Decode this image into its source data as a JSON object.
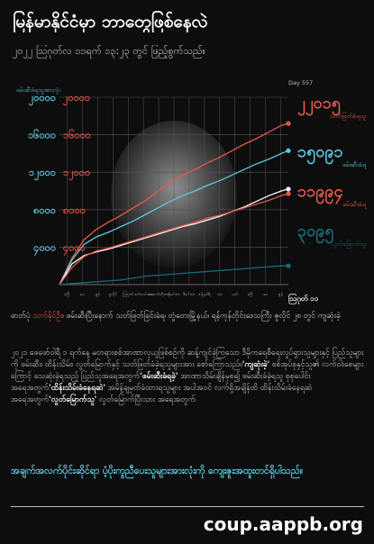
{
  "header": {
    "title": "မြန်မာနိုင်ငံမှာ ဘာတွေဖြစ်နေလဲ",
    "subtitle": "၂၀၂၂ ဩဂုတ်လ ၁၁ရက် ၁၃:၂၃ တွင် ဖြည့်စွက်သည်။"
  },
  "chart_data": {
    "type": "line",
    "ylabel": "ဖမ်းဆီးခံရသူအားလုံး",
    "x_end_label": "Day 557",
    "x_axis_end": "ဩဂုတ် ၁၁",
    "x_ticks": [
      "ဧပြီ",
      "မေ",
      "ဇွန်",
      "ဇူလိုင်",
      "ဩဂုတ်",
      "စက်တင်ဘာ",
      "အောက်တိုဘာ",
      "နိုဝင်ဘာ",
      "ဒီဇင်ဘာ",
      "ဇန်နဝါရီ",
      "ဖေ",
      "မတ်",
      "ဧပြီ",
      "မေ",
      "ဇွန်"
    ],
    "ytick_labels": [
      "၂၀၀၀၀",
      "၁၆၀၀၀",
      "၁၂၀၀၀",
      "၈၀၀၀",
      "၄၀၀၀"
    ],
    "yticks": [
      20000,
      16000,
      12000,
      8000,
      4000
    ],
    "ylim": [
      0,
      20000
    ],
    "xlim": [
      0,
      557
    ],
    "grid": true,
    "series": [
      {
        "name": "ဖမ်းဆီးခံရသူအားလုံး",
        "color": "#e8584c",
        "x": [
          0,
          30,
          60,
          90,
          120,
          150,
          180,
          210,
          240,
          270,
          300,
          330,
          360,
          390,
          420,
          450,
          480,
          510,
          540,
          557
        ],
        "y": [
          0,
          2800,
          4800,
          5900,
          6700,
          7400,
          8200,
          9000,
          10000,
          10900,
          11700,
          12300,
          13000,
          13600,
          14300,
          15000,
          15600,
          16300,
          17000,
          17200
        ]
      },
      {
        "name": "ဖမ်းဆီးခံရ",
        "color": "#5ec8e0",
        "x": [
          0,
          30,
          60,
          90,
          120,
          150,
          180,
          210,
          240,
          270,
          300,
          330,
          360,
          390,
          420,
          450,
          480,
          510,
          540,
          557
        ],
        "y": [
          0,
          2600,
          4300,
          5100,
          5600,
          6200,
          6800,
          7500,
          8200,
          8900,
          9500,
          10000,
          10600,
          11100,
          11700,
          12300,
          12900,
          13400,
          14000,
          14300
        ]
      },
      {
        "name": "သတ်ဖြတ်ခံရသူ",
        "color": "#ffffff",
        "x": [
          0,
          30,
          60,
          90,
          120,
          150,
          180,
          210,
          240,
          270,
          300,
          330,
          360,
          390,
          420,
          450,
          480,
          510,
          540,
          557
        ],
        "y": [
          0,
          2200,
          3100,
          3500,
          3800,
          4200,
          4600,
          5000,
          5400,
          5800,
          6200,
          6500,
          6900,
          7300,
          7800,
          8300,
          8900,
          9500,
          10000,
          10200
        ]
      },
      {
        "name": "ဖမ်းဆီးခံရ",
        "color": "#e8584c",
        "x": [
          0,
          30,
          60,
          90,
          120,
          150,
          180,
          210,
          240,
          270,
          300,
          330,
          360,
          390,
          420,
          450,
          480,
          510,
          540,
          557
        ],
        "y": [
          0,
          1800,
          3000,
          3600,
          3900,
          4300,
          4700,
          5100,
          5500,
          5900,
          6300,
          6700,
          7100,
          7400,
          7800,
          8200,
          8600,
          9000,
          9500,
          9700
        ]
      },
      {
        "name": "လွတ်မြောက်သူ",
        "color": "#1a6b7a",
        "x": [
          0,
          30,
          60,
          90,
          120,
          150,
          180,
          210,
          240,
          270,
          300,
          330,
          360,
          390,
          420,
          450,
          480,
          510,
          540,
          557
        ],
        "y": [
          0,
          100,
          200,
          300,
          400,
          500,
          700,
          900,
          1000,
          1100,
          1200,
          1300,
          1400,
          1500,
          1600,
          1700,
          1800,
          1900,
          2000,
          2000
        ]
      }
    ],
    "end_labels": [
      {
        "value": "၂၂၀၁၅",
        "caption": "သတ်ဖြတ်ခံရသူ",
        "color": "#e8584c"
      },
      {
        "value": "၁၅၀၉၁",
        "caption": "ဖမ်းဆီးခံရ",
        "color": "#5ec8e0"
      },
      {
        "value": "၁၁၉၉၄",
        "caption": "ဖမ်းဆီးခံရ",
        "color": "#e8584c"
      },
      {
        "value": "၃၀၉၅",
        "caption": "လွတ်မြောက်သူ",
        "color": "#1a6b7a"
      }
    ]
  },
  "body": {
    "p1_a": "ဓာတ်ပုံ ",
    "p1_name": "သက်နိုင်ဦး",
    "p1_b": "၊ ဖမ်းဆီးပြီးနောက် သတ်ဖြတ်ခြင်းခံရ၊ တွံတေးမြို့နယ်၊ ရန်ကုန်တိုင်းဒေသကြီး ဇူလိုင် ၂၈ တွင် ကျဆုံးခဲ့",
    "p2_a": "၂၀၂၁ ဖေဖော်ဝါရီ ၁ ရက်နေ့ မတရားစစ်အာဏာလုယူဖြစ်စဉ်ကို ဆန့်ကျင်ခဲ့ကြသော ဒီမိုကရေစီရေးလှုပ်ရှားသူများနှင့် ပြည်သူများကို ဖမ်းဆီး၊ ထိန်းသိမ်း၊ လွတ်မြောက်နှင့် သတ်ဖြတ်ခံခဲ့ရသူများအား စော်ကြောသည်။",
    "p2_h1": "'ကျဆုံးခဲ့'",
    "p2_b": " စစ်အုပ်စုနှင့်သူ၏ လက်ဝါးစေများကြောင့် သေဆုံးခဲ့ရသည့် ပြည်သူအရေအတွက်",
    "p2_h2": "'ဖမ်းဆီးခံရခဲ့'",
    "p2_c": " အာဏာသိမ်းချိန်မှစ၍ ဖမ်းဆီးခံခဲ့ရသူ စုစုပေါင်း အရေအတွက်",
    "p2_h3": "'ထိန်းသိမ်းခံနေရဆဲ'",
    "p2_d": " အမိန့်ချမှတ်ခံထားရသူများ အပါအဝင် လက်ရှိအချိန်ထိ ထိန်းသိမ်းခံနေရဆဲ အရေအတွက်",
    "p2_h4": "'လွတ်မြောက်သူ'",
    "p2_e": " လွတ်မြောက်ပြီးသား အရေအတွက်"
  },
  "cta": "အချက်အလက်ပိုင်းဆိုင်ရာ ပံ့ပိုးကူညီပေးသူများအားလုံးကို ကျေးဇူးအထူးတင်ရှိပါသည်။",
  "footer": {
    "site": "coup.aappb.org"
  }
}
